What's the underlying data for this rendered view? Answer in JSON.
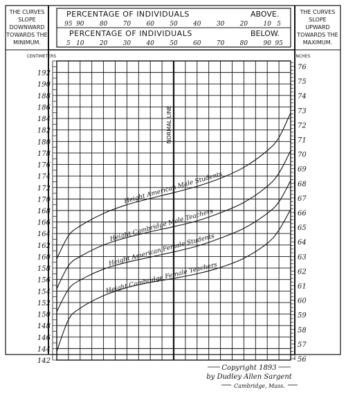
{
  "chart_data": {
    "type": "line",
    "header": {
      "left_note": [
        "THE CURVES",
        "SLOPE",
        "DOWNWARD",
        "TOWARDS THE",
        "MINIMUM."
      ],
      "right_note": [
        "THE CURVES",
        "SLOPE",
        "UPWARD",
        "TOWARDS THE",
        "MAXIMUM."
      ],
      "above_label": "PERCENTAGE OF INDIVIDUALS",
      "above_word": "ABOVE.",
      "below_label": "PERCENTAGE OF INDIVIDUALS",
      "below_word": "BELOW."
    },
    "percent_above_ticks": [
      "95",
      "90",
      "80",
      "70",
      "60",
      "50",
      "40",
      "30",
      "20",
      "10",
      "5"
    ],
    "percent_below_ticks": [
      "5",
      "10",
      "20",
      "30",
      "40",
      "50",
      "60",
      "70",
      "80",
      "90",
      "95"
    ],
    "percentile_positions": [
      5,
      10,
      20,
      30,
      40,
      50,
      60,
      70,
      80,
      90,
      95
    ],
    "left_axis": {
      "unit": "CENTIMETERS",
      "min": 142,
      "max": 194,
      "labeled_ticks": [
        192,
        190,
        188,
        186,
        184,
        182,
        180,
        178,
        176,
        174,
        172,
        170,
        168,
        166,
        164,
        162,
        160,
        158,
        156,
        154,
        152,
        150,
        148,
        146,
        144,
        142
      ]
    },
    "right_axis": {
      "unit": "INCHES",
      "labeled_ticks": [
        76,
        75,
        74,
        73,
        72,
        71,
        70,
        69,
        68,
        67,
        66,
        65,
        64,
        63,
        62,
        61,
        60,
        59,
        58,
        57,
        56
      ]
    },
    "normal_line_label": "NORMAL LINE",
    "xlim": [
      0,
      100
    ],
    "series": [
      {
        "name": "Height American Male Students",
        "x": [
          0,
          5,
          10,
          20,
          30,
          40,
          50,
          60,
          70,
          80,
          90,
          95,
          100
        ],
        "y": [
          159.6,
          163.6,
          165.3,
          167.5,
          169.0,
          170.1,
          171.1,
          172.2,
          173.6,
          175.5,
          178.4,
          180.7,
          185.0
        ]
      },
      {
        "name": "Height Cambridge Male Teachers",
        "x": [
          0,
          5,
          10,
          20,
          30,
          40,
          50,
          60,
          70,
          80,
          90,
          95,
          100
        ],
        "y": [
          154.4,
          158.4,
          160.0,
          162.0,
          163.3,
          164.3,
          165.2,
          166.2,
          167.6,
          169.4,
          172.2,
          174.5,
          178.4
        ]
      },
      {
        "name": "Height American Female Students",
        "x": [
          0,
          5,
          10,
          20,
          30,
          40,
          50,
          60,
          70,
          80,
          90,
          95,
          100
        ],
        "y": [
          150.4,
          154.3,
          155.9,
          157.8,
          159.0,
          159.9,
          160.8,
          161.8,
          163.2,
          164.9,
          167.5,
          169.5,
          173.2
        ]
      },
      {
        "name": "Height Cambridge Female Teachers",
        "x": [
          0,
          5,
          10,
          20,
          30,
          40,
          50,
          60,
          70,
          80,
          90,
          95,
          100
        ],
        "y": [
          143.5,
          149.0,
          151.0,
          153.2,
          154.6,
          155.5,
          156.2,
          157.0,
          158.1,
          159.7,
          162.3,
          164.6,
          168.2
        ]
      }
    ],
    "copyright": [
      "Copyright 1893",
      "by Dudley Allen Sargent",
      "Cambridge, Mass."
    ]
  }
}
